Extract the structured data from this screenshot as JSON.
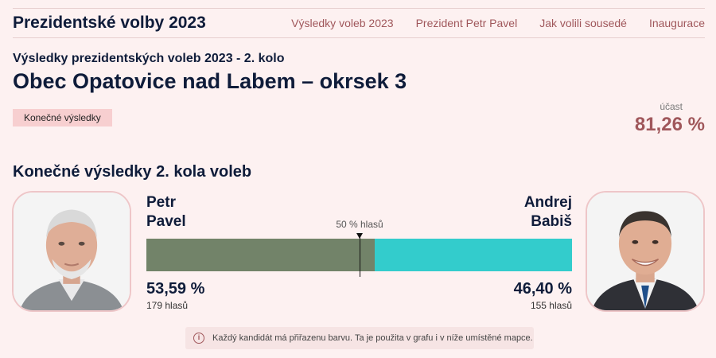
{
  "header": {
    "brand": "Prezidentské volby 2023",
    "nav": [
      {
        "label": "Výsledky voleb 2023"
      },
      {
        "label": "Prezident Petr Pavel"
      },
      {
        "label": "Jak volili sousedé"
      },
      {
        "label": "Inaugurace"
      }
    ]
  },
  "page": {
    "subtitle": "Výsledky prezidentských voleb 2023 - 2. kolo",
    "title": "Obec Opatovice nad Labem – okrsek 3",
    "badge": "Konečné výsledky",
    "turnout_label": "účast",
    "turnout_value": "81,26 %",
    "section_title": "Konečné výsledky 2. kola voleb"
  },
  "results": {
    "half_label": "50 % hlasů",
    "candidates": [
      {
        "first_name": "Petr",
        "last_name": "Pavel",
        "percent": "53,59 %",
        "share": 53.59,
        "votes": "179 hlasů",
        "color": "#728369"
      },
      {
        "first_name": "Andrej",
        "last_name": "Babiš",
        "percent": "46,40 %",
        "share": 46.4,
        "votes": "155 hlasů",
        "color": "#33cccc"
      }
    ]
  },
  "note": {
    "icon": "info-icon",
    "text": "Každý kandidát má přiřazenu barvu. Ta je použita v grafu i v níže umístěné mapce."
  }
}
